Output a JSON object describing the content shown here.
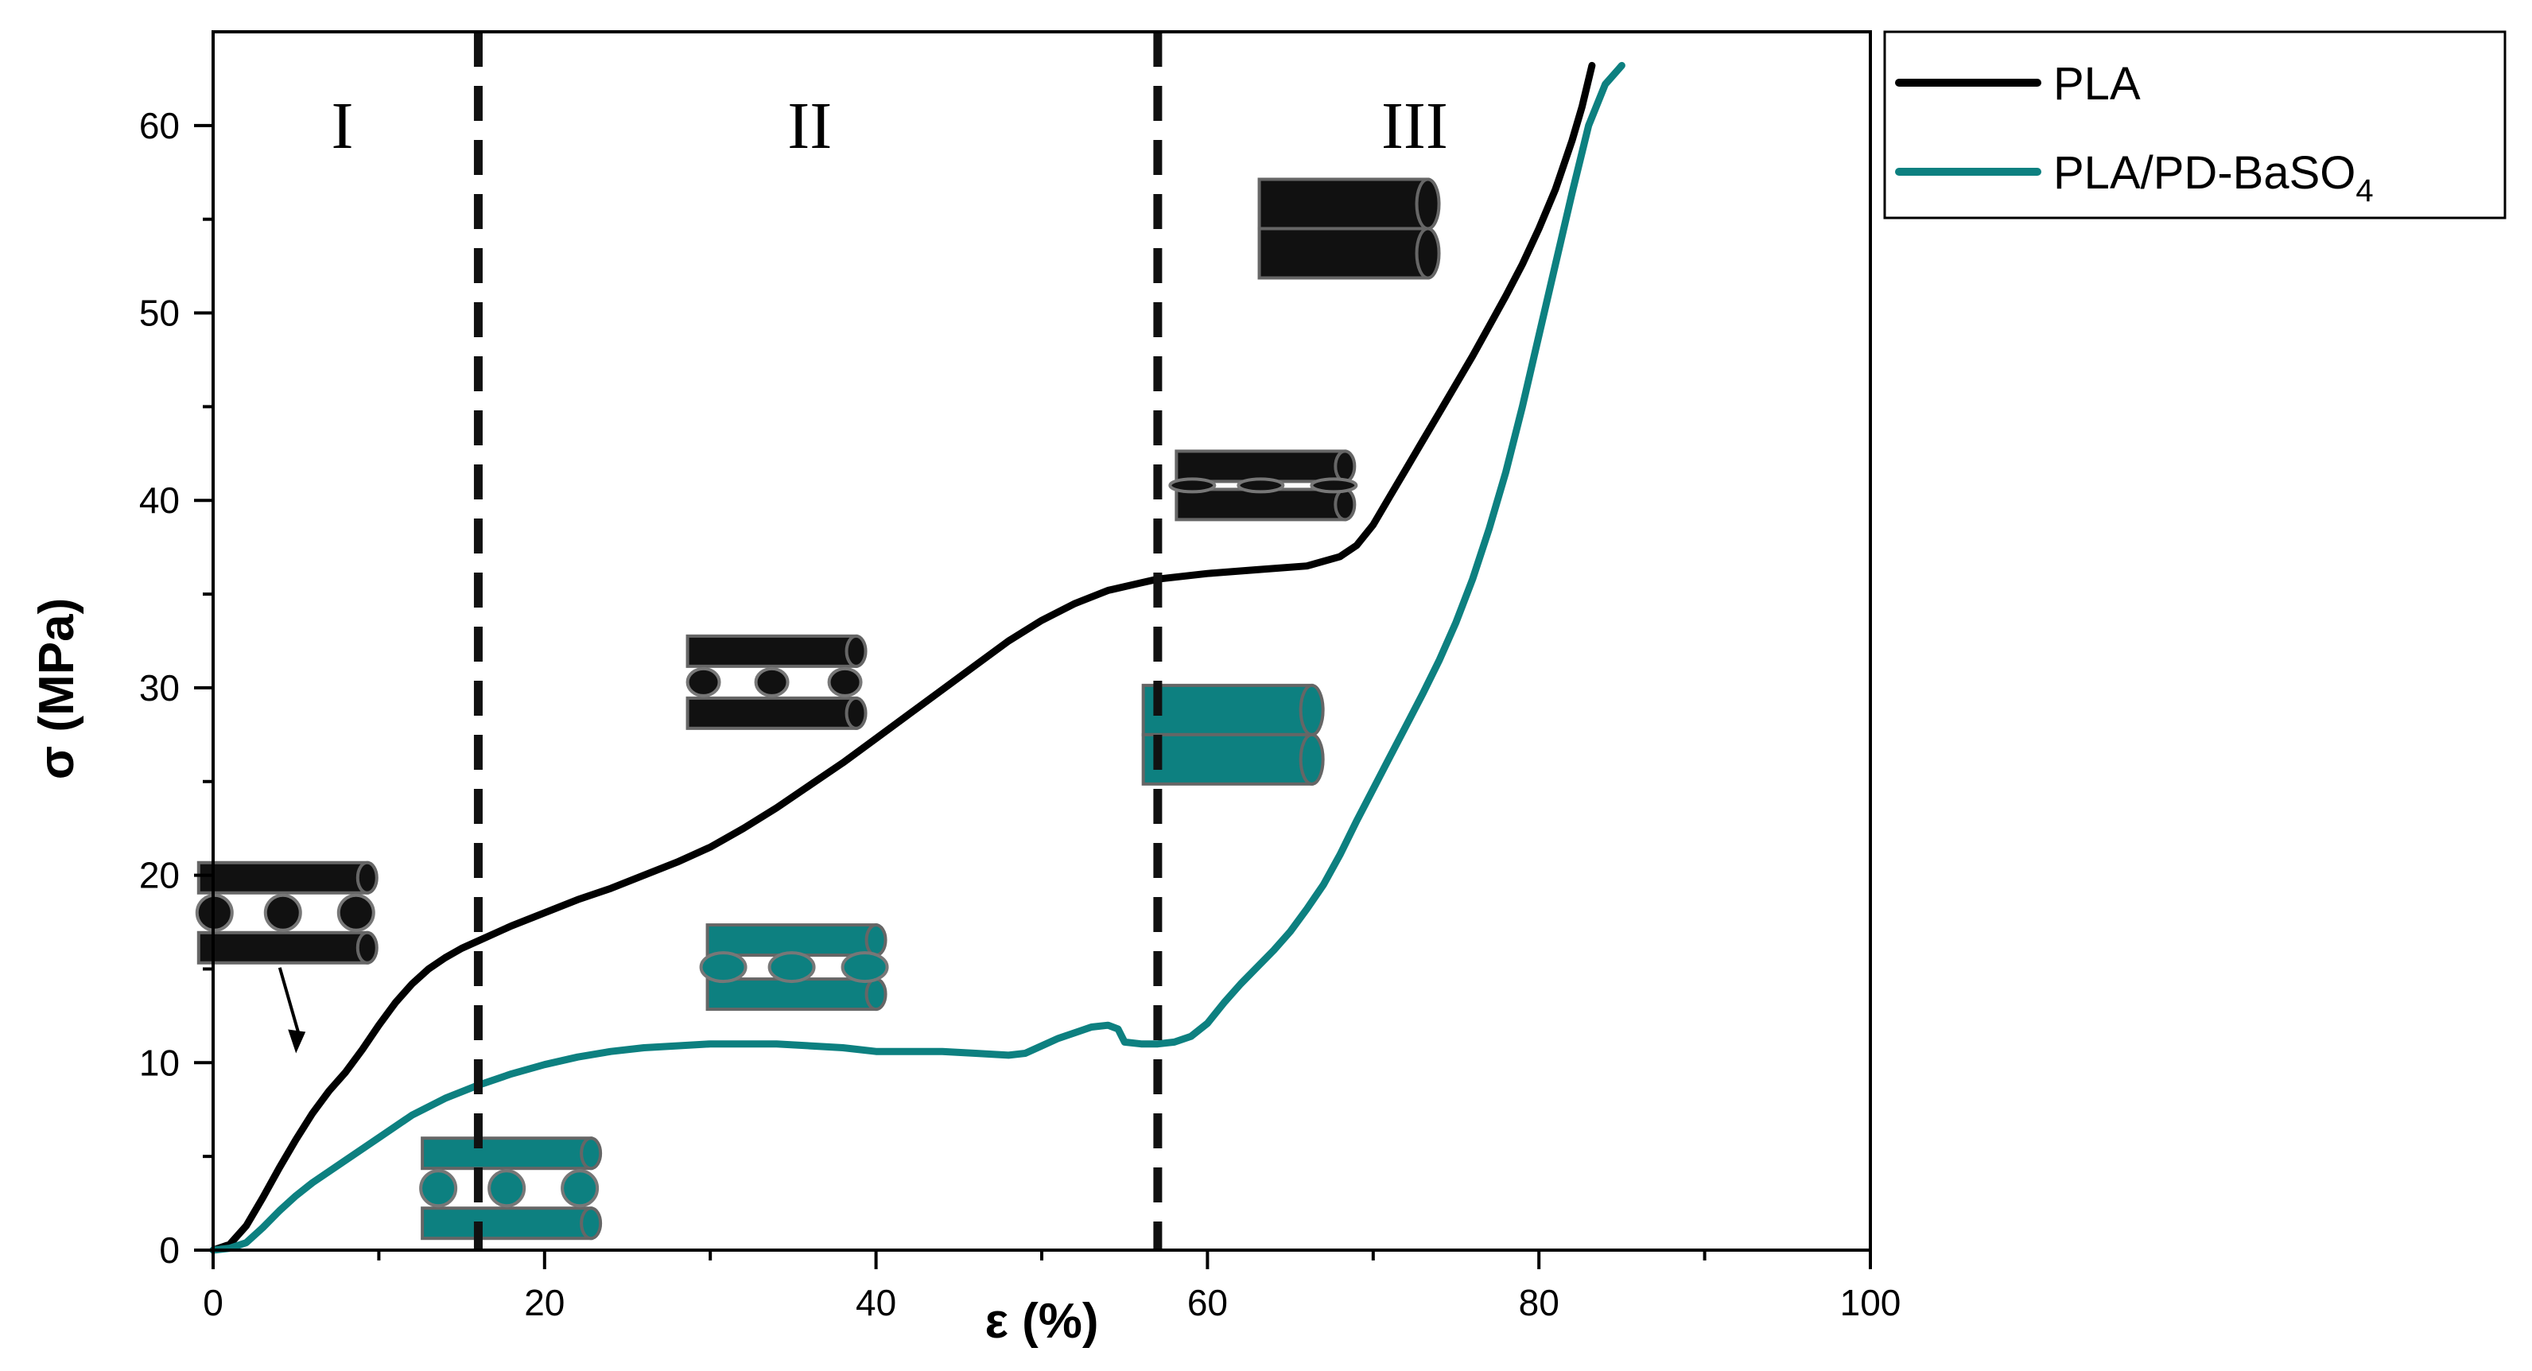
{
  "chart_data": {
    "type": "line",
    "xlabel": "ε (%)",
    "ylabel": "σ (MPa)",
    "xlim": [
      0,
      100
    ],
    "ylim": [
      0,
      65
    ],
    "xticks": [
      0,
      20,
      40,
      60,
      80,
      100
    ],
    "yticks": [
      0,
      10,
      20,
      30,
      40,
      50,
      60
    ],
    "grid": false,
    "legend_position": "top-right, outside plot",
    "region_boundaries": [
      16,
      57
    ],
    "region_labels": [
      {
        "text": "I",
        "x": 7.8,
        "y": 60
      },
      {
        "text": "II",
        "x": 36,
        "y": 60
      },
      {
        "text": "III",
        "x": 72.5,
        "y": 60
      }
    ],
    "series": [
      {
        "name": "PLA",
        "color": "#000000",
        "points": [
          [
            0,
            0
          ],
          [
            1,
            0.3
          ],
          [
            2,
            1.3
          ],
          [
            3,
            2.8
          ],
          [
            4,
            4.4
          ],
          [
            5,
            5.9
          ],
          [
            6,
            7.3
          ],
          [
            7,
            8.5
          ],
          [
            8,
            9.5
          ],
          [
            9,
            10.7
          ],
          [
            10,
            12.0
          ],
          [
            11,
            13.2
          ],
          [
            12,
            14.2
          ],
          [
            13,
            15.0
          ],
          [
            14,
            15.6
          ],
          [
            15,
            16.1
          ],
          [
            16,
            16.5
          ],
          [
            18,
            17.3
          ],
          [
            20,
            18.0
          ],
          [
            22,
            18.7
          ],
          [
            24,
            19.3
          ],
          [
            26,
            20.0
          ],
          [
            28,
            20.7
          ],
          [
            30,
            21.5
          ],
          [
            32,
            22.5
          ],
          [
            34,
            23.6
          ],
          [
            36,
            24.8
          ],
          [
            38,
            26.0
          ],
          [
            40,
            27.3
          ],
          [
            42,
            28.6
          ],
          [
            44,
            29.9
          ],
          [
            46,
            31.2
          ],
          [
            48,
            32.5
          ],
          [
            50,
            33.6
          ],
          [
            52,
            34.5
          ],
          [
            54,
            35.2
          ],
          [
            56,
            35.6
          ],
          [
            57,
            35.8
          ],
          [
            60,
            36.1
          ],
          [
            63,
            36.3
          ],
          [
            66,
            36.5
          ],
          [
            68,
            37.0
          ],
          [
            69,
            37.6
          ],
          [
            70,
            38.7
          ],
          [
            71,
            40.2
          ],
          [
            72,
            41.7
          ],
          [
            73,
            43.2
          ],
          [
            74,
            44.7
          ],
          [
            75,
            46.2
          ],
          [
            76,
            47.7
          ],
          [
            77,
            49.3
          ],
          [
            78,
            50.9
          ],
          [
            79,
            52.6
          ],
          [
            80,
            54.5
          ],
          [
            81,
            56.6
          ],
          [
            82,
            59.2
          ],
          [
            82.6,
            61.0
          ],
          [
            83.2,
            63.2
          ]
        ]
      },
      {
        "name": "PLA/PD-BaSO4",
        "color": "#0d8080",
        "points": [
          [
            0,
            0
          ],
          [
            1,
            0.1
          ],
          [
            2,
            0.4
          ],
          [
            3,
            1.2
          ],
          [
            4,
            2.1
          ],
          [
            5,
            2.9
          ],
          [
            6,
            3.6
          ],
          [
            8,
            4.8
          ],
          [
            10,
            6.0
          ],
          [
            12,
            7.2
          ],
          [
            14,
            8.1
          ],
          [
            16,
            8.8
          ],
          [
            18,
            9.4
          ],
          [
            20,
            9.9
          ],
          [
            22,
            10.3
          ],
          [
            24,
            10.6
          ],
          [
            26,
            10.8
          ],
          [
            28,
            10.9
          ],
          [
            30,
            11.0
          ],
          [
            32,
            11.0
          ],
          [
            34,
            11.0
          ],
          [
            36,
            10.9
          ],
          [
            38,
            10.8
          ],
          [
            40,
            10.6
          ],
          [
            42,
            10.6
          ],
          [
            44,
            10.6
          ],
          [
            46,
            10.5
          ],
          [
            48,
            10.4
          ],
          [
            49,
            10.5
          ],
          [
            50,
            10.9
          ],
          [
            51,
            11.3
          ],
          [
            52,
            11.6
          ],
          [
            53,
            11.9
          ],
          [
            54,
            12.0
          ],
          [
            54.6,
            11.8
          ],
          [
            55,
            11.1
          ],
          [
            56,
            11.0
          ],
          [
            57,
            11.0
          ],
          [
            58,
            11.1
          ],
          [
            59,
            11.4
          ],
          [
            60,
            12.1
          ],
          [
            61,
            13.2
          ],
          [
            62,
            14.2
          ],
          [
            63,
            15.1
          ],
          [
            64,
            16.0
          ],
          [
            65,
            17.0
          ],
          [
            66,
            18.2
          ],
          [
            67,
            19.5
          ],
          [
            68,
            21.1
          ],
          [
            69,
            22.9
          ],
          [
            70,
            24.6
          ],
          [
            71,
            26.3
          ],
          [
            72,
            28.0
          ],
          [
            73,
            29.7
          ],
          [
            74,
            31.5
          ],
          [
            75,
            33.5
          ],
          [
            76,
            35.8
          ],
          [
            77,
            38.5
          ],
          [
            78,
            41.5
          ],
          [
            79,
            45.0
          ],
          [
            80,
            48.8
          ],
          [
            81,
            52.6
          ],
          [
            82,
            56.4
          ],
          [
            83,
            60.0
          ],
          [
            84,
            62.2
          ],
          [
            85,
            63.2
          ]
        ]
      }
    ]
  },
  "legend": {
    "entries": [
      {
        "label": "PLA",
        "color": "#000000"
      },
      {
        "label": "PLA/PD-BaSO",
        "subscript": "4",
        "color": "#0d8080"
      }
    ]
  },
  "axes": {
    "x_title": "ε (%)",
    "y_title": "σ (MPa)",
    "x_tick_labels": [
      "0",
      "20",
      "40",
      "60",
      "80",
      "100"
    ],
    "y_tick_labels": [
      "0",
      "10",
      "20",
      "30",
      "40",
      "50",
      "60"
    ]
  },
  "schematics": [
    {
      "name": "pla-rods-with-spheres-region-1",
      "color": "#111111",
      "stage": "spheres",
      "anchor_x": 4.5,
      "anchor_y": 18,
      "arrow_to": [
        5,
        10.5
      ]
    },
    {
      "name": "basO4-rods-with-spheres-region-1",
      "color": "#0d8080",
      "stage": "spheres",
      "anchor_x": 18,
      "anchor_y": 3.3
    },
    {
      "name": "pla-rods-with-small-spheres-region-2",
      "color": "#111111",
      "stage": "small-spheres",
      "anchor_x": 34,
      "anchor_y": 30.3
    },
    {
      "name": "basO4-rods-with-ellipsoids-region-2",
      "color": "#0d8080",
      "stage": "ellipsoids",
      "anchor_x": 35.2,
      "anchor_y": 15.1
    },
    {
      "name": "pla-rods-with-flat-ellipsoids-region-3",
      "color": "#111111",
      "stage": "flat",
      "anchor_x": 63.5,
      "anchor_y": 40.8
    },
    {
      "name": "basO4-rods-packed-region-3",
      "color": "#0d8080",
      "stage": "packed",
      "anchor_x": 61.5,
      "anchor_y": 27.5
    },
    {
      "name": "pla-rods-packed-region-3",
      "color": "#111111",
      "stage": "packed",
      "anchor_x": 68.5,
      "anchor_y": 54.5
    }
  ]
}
